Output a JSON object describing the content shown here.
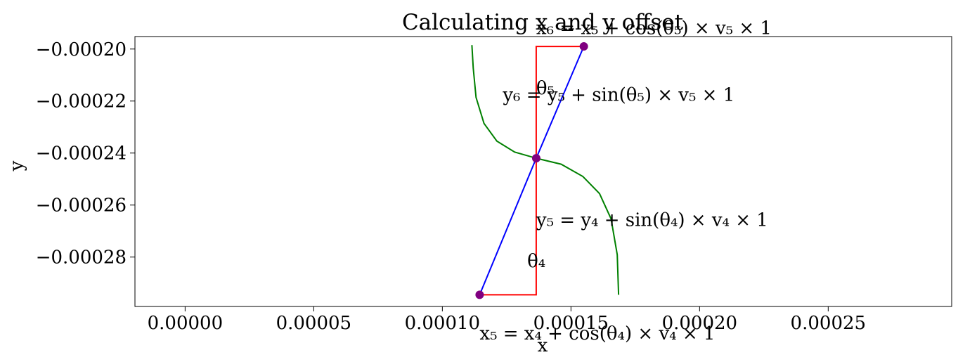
{
  "chart_data": {
    "type": "line",
    "title": "Calculating x and y offset",
    "xlabel": "x",
    "ylabel": "y",
    "xlim": [
      -1.95e-05,
      0.000298
    ],
    "ylim": [
      -0.000299,
      -0.0001952
    ],
    "grid": false,
    "xticks": [
      0,
      5e-05,
      0.0001,
      0.00015,
      0.0002,
      0.00025
    ],
    "xtick_labels": [
      "0.00000",
      "0.00005",
      "0.00010",
      "0.00015",
      "0.00020",
      "0.00025"
    ],
    "yticks": [
      -0.0002,
      -0.00022,
      -0.00024,
      -0.00026,
      -0.00028
    ],
    "ytick_labels": [
      "−0.00020",
      "−0.00022",
      "−0.00024",
      "−0.00026",
      "−0.00028"
    ],
    "colors": {
      "vector": "#0000ff",
      "components": "#ff0000",
      "arc": "#008000",
      "point": "#800080"
    },
    "points": [
      {
        "x": 0.0001145,
        "y": -0.0002945
      },
      {
        "x": 0.0001365,
        "y": -0.000242
      },
      {
        "x": 0.000155,
        "y": -0.000199
      }
    ],
    "vectors": [
      {
        "x": [
          0.0001145,
          0.0001365
        ],
        "y": [
          -0.0002945,
          -0.000242
        ]
      },
      {
        "x": [
          0.0001365,
          0.000155
        ],
        "y": [
          -0.000242,
          -0.000199
        ]
      }
    ],
    "component_lines": [
      {
        "x": [
          0.0001145,
          0.0001365,
          0.0001365
        ],
        "y": [
          -0.0002945,
          -0.0002945,
          -0.000242
        ]
      },
      {
        "x": [
          0.0001365,
          0.0001365,
          0.000155
        ],
        "y": [
          -0.000242,
          -0.000199,
          -0.000199
        ]
      }
    ],
    "arcs": [
      {
        "x": [
          0.0001365,
          0.0001462,
          0.0001546,
          0.0001611,
          0.0001656,
          0.000168,
          0.0001685
        ],
        "y": [
          -0.000242,
          -0.0002443,
          -0.000249,
          -0.0002556,
          -0.0002653,
          -0.0002791,
          -0.0002945
        ]
      },
      {
        "x": [
          0.0001365,
          0.0001281,
          0.0001212,
          0.0001162,
          0.0001131,
          0.000112,
          0.0001115
        ],
        "y": [
          -0.000242,
          -0.0002396,
          -0.0002354,
          -0.0002286,
          -0.0002186,
          -0.0002073,
          -0.0001985
        ]
      }
    ],
    "annotations": [
      {
        "text": "x₆ = x₅ + cos(θ₅) × v₅ × 1",
        "x": 0.0001365,
        "y": -0.0001943
      },
      {
        "text": "y₆ = y₅ + sin(θ₅) × v₅ × 1",
        "x": 0.0001235,
        "y": -0.00022
      },
      {
        "text": "θ₅",
        "x": 0.0001365,
        "y": -0.00021733
      },
      {
        "text": "y₅ = y₄ + sin(θ₄) × v₄ × 1",
        "x": 0.0001365,
        "y": -0.000268
      },
      {
        "text": "θ₄",
        "x": 0.000133,
        "y": -0.0002838
      },
      {
        "text": "x₅ = x₄ + cos(θ₄) × v₄ × 1",
        "x": 0.0001145,
        "y": -0.0003117
      }
    ]
  }
}
